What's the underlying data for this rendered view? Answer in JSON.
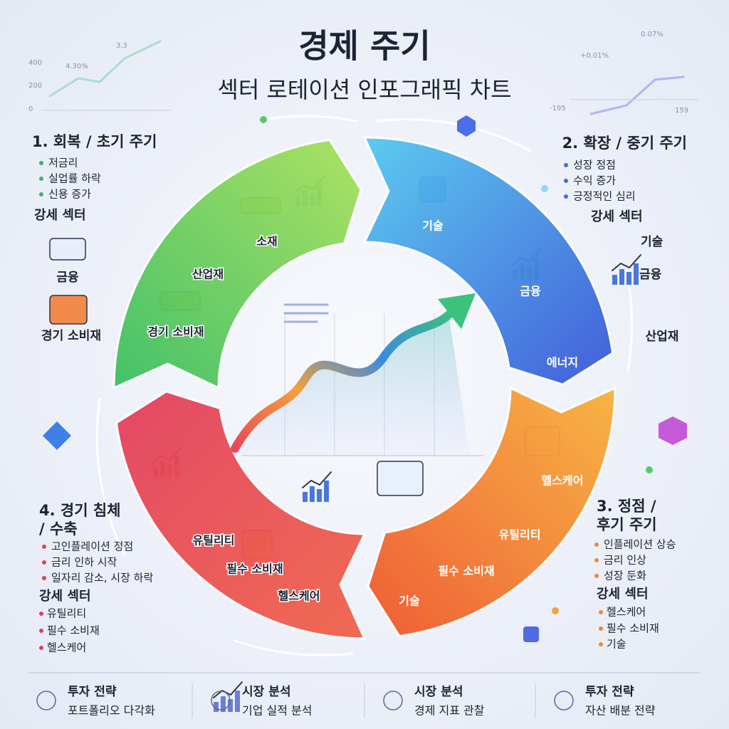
{
  "header": {
    "title": "경제 주기",
    "subtitle": "섹터 로테이션 인포그래픽 차트"
  },
  "background_labels": [
    "400",
    "200",
    "0",
    "4.30%",
    "3.3",
    "0.07%",
    "+0.01%",
    "-195",
    "159"
  ],
  "phases": [
    {
      "title_lines": [
        "1. 회복 / 초기 주기"
      ],
      "points": [
        "저금리",
        "실업률 하락",
        "신용 증가"
      ],
      "sector_heading": "강세 섹터",
      "sectors": [
        "금융",
        "경기 소비재"
      ],
      "ring_labels": [
        "소재",
        "산업재",
        "경기 소비재"
      ]
    },
    {
      "title_lines": [
        "2. 확장 / 중기 주기"
      ],
      "points": [
        "성장 정점",
        "수익 증가",
        "긍정적인 심리"
      ],
      "sector_heading": "강세 섹터",
      "sectors": [
        "기술",
        "금융",
        "산업재"
      ],
      "ring_labels": [
        "기술",
        "금융",
        "에너지"
      ]
    },
    {
      "title_lines": [
        "3. 정점 /",
        "후기 주기"
      ],
      "points": [
        "인플레이션 상승",
        "금리 인상",
        "성장 둔화"
      ],
      "sector_heading": "강세 섹터",
      "sectors": [
        "헬스케어",
        "필수 소비재",
        "기술"
      ],
      "ring_labels": [
        "헬스케어",
        "유틸리티",
        "필수 소비재",
        "기술"
      ]
    },
    {
      "title_lines": [
        "4. 경기 침체",
        "/ 수축"
      ],
      "points": [
        "고인플레이션 정점",
        "금리 인하 시작",
        "일자리 감소, 시장 하락"
      ],
      "sector_heading": "강세 섹터",
      "sectors": [
        "유틸리티",
        "필수 소비재",
        "헬스케어"
      ],
      "ring_labels": [
        "유틸리티",
        "필수 소비재",
        "헬스케어"
      ]
    }
  ],
  "footer": [
    {
      "title": "투자 전략",
      "subtitle": "포트폴리오 다각화"
    },
    {
      "title": "시장 분석",
      "subtitle": "기업 실적 분석"
    },
    {
      "title": "시장 분석",
      "subtitle": "경제 지표 관찰"
    },
    {
      "title": "투자 전략",
      "subtitle": "자산 배분 전략"
    }
  ]
}
